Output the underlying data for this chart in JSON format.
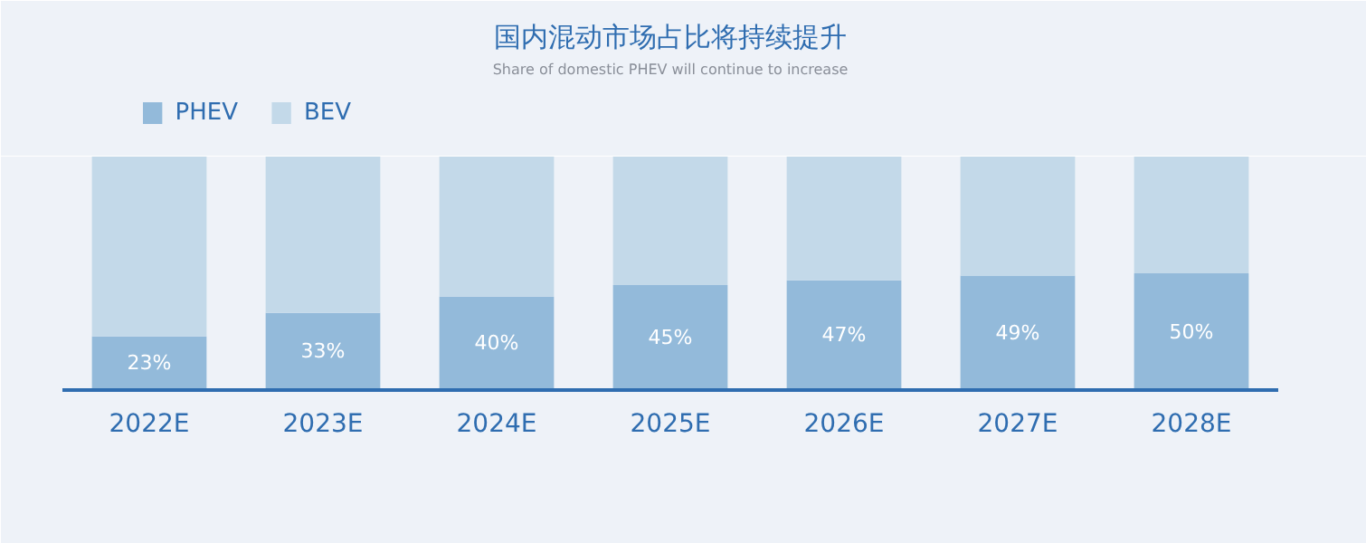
{
  "chart_data": {
    "type": "bar",
    "title": "国内混动市场占比将持续提升",
    "subtitle": "Share of domestic PHEV will continue to increase",
    "categories": [
      "2022E",
      "2023E",
      "2024E",
      "2025E",
      "2026E",
      "2027E",
      "2028E"
    ],
    "stacked": true,
    "ylim": [
      0,
      100
    ],
    "tick_labels": "x",
    "grid": false,
    "legend": "top left",
    "series": [
      {
        "name": "PHEV",
        "color": "#93bada",
        "values": [
          23,
          33,
          40,
          45,
          47,
          49,
          50
        ],
        "value_labels": [
          "23%",
          "33%",
          "40%",
          "45%",
          "47%",
          "49%",
          "50%"
        ]
      },
      {
        "name": "BEV",
        "color": "#c3d9e9",
        "values": [
          77,
          67,
          60,
          55,
          53,
          51,
          50
        ]
      }
    ]
  }
}
